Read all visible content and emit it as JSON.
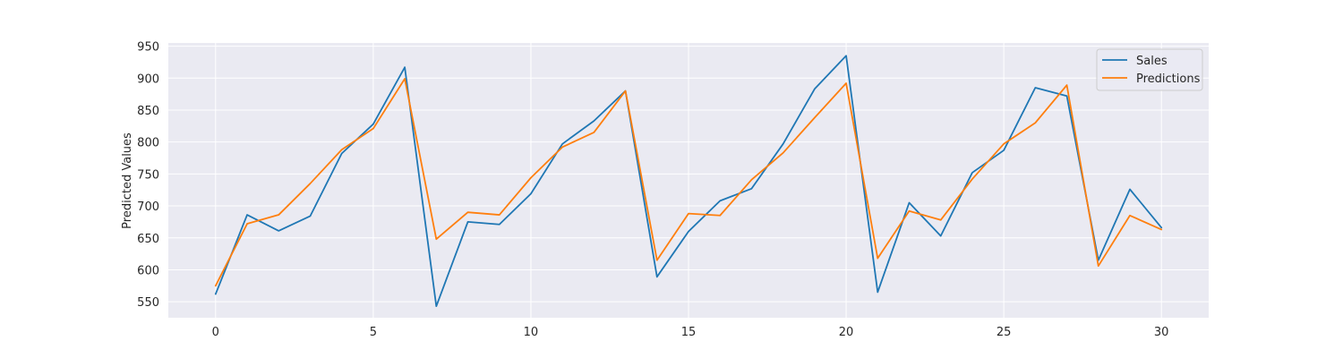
{
  "chart_data": {
    "type": "line",
    "title": "",
    "xlabel": "",
    "ylabel": "Predicted Values",
    "xlim": [
      -1.5,
      31.5
    ],
    "ylim": [
      525,
      955
    ],
    "xticks": [
      0,
      5,
      10,
      15,
      20,
      25,
      30
    ],
    "yticks": [
      550,
      600,
      650,
      700,
      750,
      800,
      850,
      900,
      950
    ],
    "grid": true,
    "legend_position": "top-right",
    "x": [
      0,
      1,
      2,
      3,
      4,
      5,
      6,
      7,
      8,
      9,
      10,
      11,
      12,
      13,
      14,
      15,
      16,
      17,
      18,
      19,
      20,
      21,
      22,
      23,
      24,
      25,
      26,
      27,
      28,
      29,
      30
    ],
    "series": [
      {
        "name": "Sales",
        "color": "#1f77b4",
        "values": [
          562,
          686,
          661,
          684,
          782,
          828,
          917,
          543,
          675,
          671,
          719,
          797,
          833,
          880,
          589,
          660,
          708,
          727,
          797,
          883,
          935,
          565,
          705,
          653,
          752,
          787,
          885,
          872,
          615,
          726,
          666
        ]
      },
      {
        "name": "Predictions",
        "color": "#ff7f0e",
        "values": [
          575,
          672,
          686,
          735,
          788,
          821,
          899,
          648,
          690,
          686,
          744,
          792,
          815,
          880,
          615,
          688,
          685,
          741,
          783,
          838,
          892,
          618,
          692,
          678,
          742,
          797,
          830,
          889,
          606,
          685,
          663
        ]
      }
    ]
  }
}
